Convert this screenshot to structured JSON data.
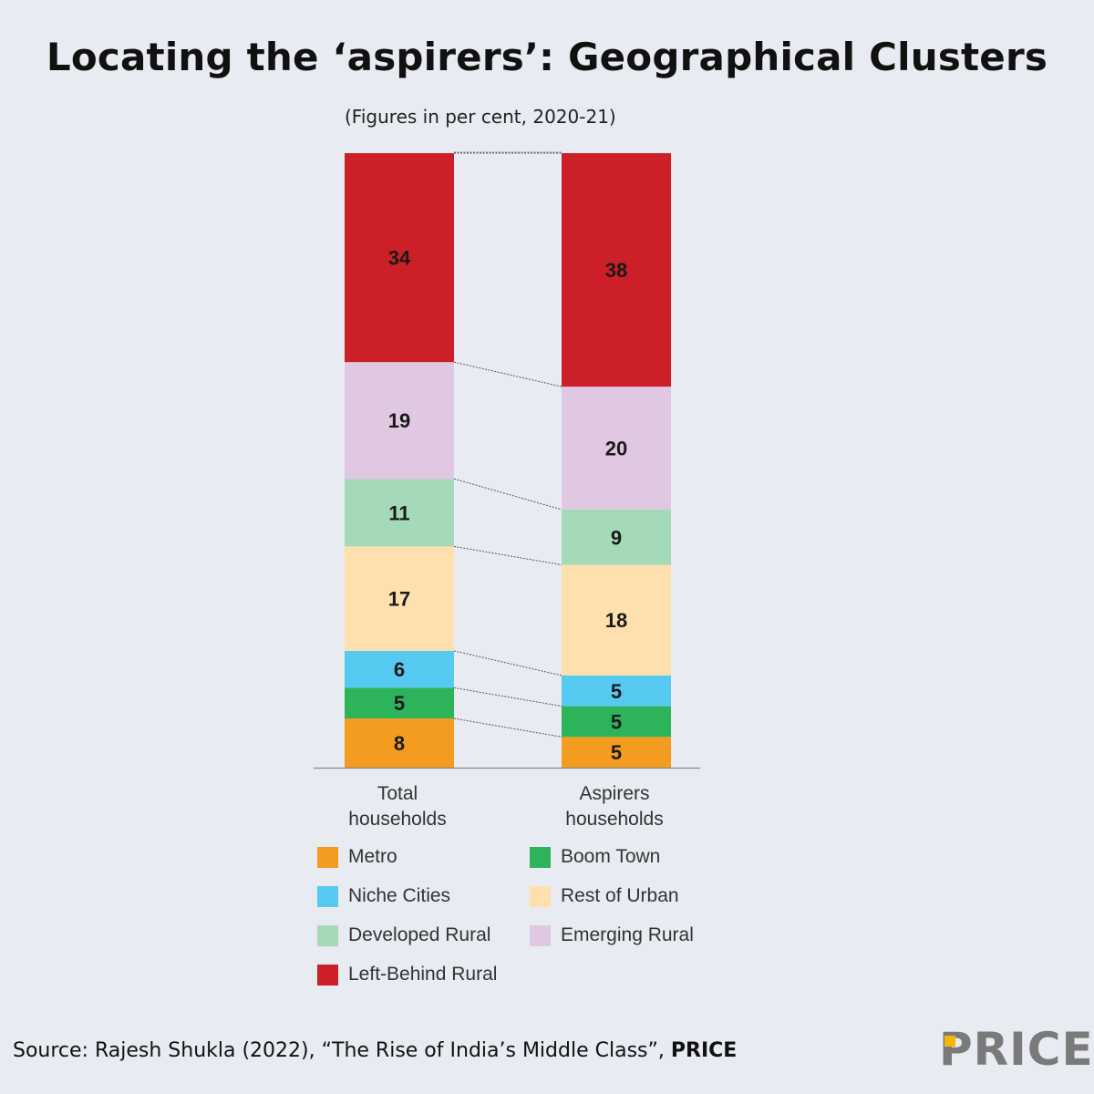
{
  "title": "Locating the ‘aspirers’: Geographical Clusters",
  "subtitle": "(Figures in per cent, 2020-21)",
  "colors": {
    "Metro": "#f39c1f",
    "Boom Town": "#2db45a",
    "Niche Cities": "#55c9ef",
    "Rest of Urban": "#fde0ad",
    "Developed Rural": "#a5dab9",
    "Emerging Rural": "#e0c8e2",
    "Left-Behind Rural": "#cd1f27"
  },
  "chart_data": {
    "type": "bar",
    "stacked": true,
    "categories": [
      "Total\nhouseholds",
      "Aspirers\nhouseholds"
    ],
    "series": [
      {
        "name": "Metro",
        "values": [
          8,
          5
        ]
      },
      {
        "name": "Boom Town",
        "values": [
          5,
          5
        ]
      },
      {
        "name": "Niche Cities",
        "values": [
          6,
          5
        ]
      },
      {
        "name": "Rest of Urban",
        "values": [
          17,
          18
        ]
      },
      {
        "name": "Developed Rural",
        "values": [
          11,
          9
        ]
      },
      {
        "name": "Emerging Rural",
        "values": [
          19,
          20
        ]
      },
      {
        "name": "Left-Behind Rural",
        "values": [
          34,
          38
        ]
      }
    ],
    "legend": [
      "Metro",
      "Boom Town",
      "Niche Cities",
      "Rest of Urban",
      "Developed Rural",
      "Emerging Rural",
      "Left-Behind Rural"
    ],
    "legend_placement": "bottom",
    "connector_lines": true,
    "grid": false,
    "ylim": [
      0,
      100
    ]
  },
  "footer": {
    "source_prefix": "Source: Rajesh Shukla (2022), “The Rise of India’s Middle Class”, ",
    "source_bold": "PRICE"
  },
  "logo": {
    "text": "PRICE"
  }
}
